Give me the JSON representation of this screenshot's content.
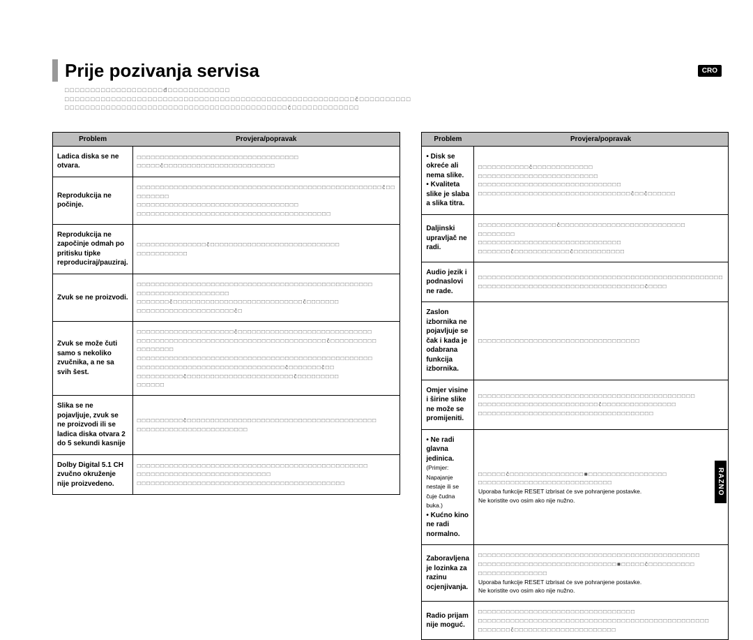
{
  "header": {
    "title": "Prije pozivanja servisa",
    "lang_badge": "CRO",
    "intro_line1": "□□□□□□□□□□□□□□□□□□□đ□□□□□□□□□□□□",
    "intro_line2": "□□□□□□□□□□□□□□□□□□□□□□□□□□□□□□□□□□□□□□□□□□□□□□□□□□□□□□□□č□□□□□□□□□□",
    "intro_line3": "□□□□□□□□□□□□□□□□□□□□□□□□□□□□□□□□□□□□□□□□□□□č□□□□□□□□□□□□□"
  },
  "table_header": {
    "col1": "Problem",
    "col2": "Provjera/popravak"
  },
  "left_rows": [
    {
      "problem": "Ladica diska se ne otvara.",
      "fix": "□□□□□□□□□□□□□□□□□□□□□□□□□□□□□□□□□□□\n□□□□□č□□□□□□□□□□□□□□□□□□□□□□□□"
    },
    {
      "problem": "Reprodukcija ne počinje.",
      "fix": "□□□□□□□□□□□□□□□□□□□□□□□□□□□□□□□□□□□□□□□□□□□□□□□□□□□□□č□□\n□□□□□□□\n□□□□□□□□□□□□□□□□□□□□□□□□□□□□□□□□□□□\n□□□□□□□□□□□□□□□□□□□□□□□□□□□□□□□□□□□□□□□□□□"
    },
    {
      "problem": "Reprodukcija ne započinje odmah po pritisku tipke reproduciraj/pauziraj.",
      "fix": "□□□□□□□□□□□□□□□č□□□□□□□□□□□□□□□□□□□□□□□□□□□□\n□□□□□□□□□□□"
    },
    {
      "problem": "Zvuk se ne proizvodi.",
      "fix": "□□□□□□□□□□□□□□□□□□□□□□□□□□□□□□□□□□□□□□□□□□□□□□□□□□□\n□□□□□□□□□□□□□□□□□□□□\n□□□□□□□č□□□□□□□□□□□□□□□□□□□□□□□□□□□□č□□□□□□□\n□□□□□□□□□□□□□□□□□□□□□č□"
    },
    {
      "problem": "Zvuk se može čuti samo s nekoliko zvučnika, a ne sa svih šest.",
      "fix": "□□□□□□□□□□□□□□□□□□□□□č□□□□□□□□□□□□□□□□□□□□□□□□□□□□□\n□□□□□□□□□□□□□□□□□□□□□□□□□□□□□□□□□□□□□□□□□č□□□□□□□□□□\n□□□□□□□□\n□□□□□□□□□□□□□□□□□□□□□□□□□□□□□□□□□□□□□□□□□□□□□□□□□□□\n□□□□□□□□□□□□□□□□□□□□□□□□□□□□□□□□č□□□□□□□č□□\n□□□□□□□□□□č□□□□□□□□□□□□□□□□□□□□□□□č□□□□□□□□□\n□□□□□□"
    },
    {
      "problem": "Slika se ne pojavljuje, zvuk se ne proizvodi ili se ladica diska otvara 2 do 5 sekundi kasnije",
      "fix": "□□□□□□□□□□č□□□□□□□□□□□□□□□□□□□□□□□□□□□□□□□□□□□□□□□□□\n□□□□□□□□□□□□□□□□□□□□□□□□"
    },
    {
      "problem": "Dolby Digital 5.1 CH zvučno okruženje nije proizvedeno.",
      "fix": "□□□□□□□□□□□□□□□□□□□□□□□□□□□□□□□□□□□□□□□□□□□□□□□□□□\n□□□□□□□□□□□□□□□□□□□□□□□□□□□□□\n□□□□□□□□□□□□□□□□□□□□□□□□□□□□□□□□□□□□□□□□□□□□□"
    }
  ],
  "right_rows": [
    {
      "problem": "• Disk se okreće ali nema slike.\n• Kvaliteta slike je slaba a slika titra.",
      "fix": "□□□□□□□□□□□č□□□□□□□□□□□□□\n□□□□□□□□□□□□□□□□□□□□□□□□□□\n□□□□□□□□□□□□□□□□□□□□□□□□□□□□□□□\n□□□□□□□□□□□□□□□□□□□□□□□□□□□□□□□□□č□□č□□□□□□"
    },
    {
      "problem": "Daljinski upravljač ne radi.",
      "fix": "□□□□□□□□□□□□□□□□□č□□□□□□□□□□□□□□□□□□□□□□□□□□□\n□□□□□□□□\n□□□□□□□□□□□□□□□□□□□□□□□□□□□□□□□\n□□□□□□□č□□□□□□□□□□□□č□□□□□□□□□□□"
    },
    {
      "problem": "Audio jezik i podnaslovi ne rade.",
      "fix": "□□□□□□□□□□□□□□□□□□□□□□□□□□□□□□□□□□□□□□□□□□□□□□□□□□□□□\n□□□□□□□□□□□□□□□□□□□□□□□□□□□□□□□□□□□□č□□□□"
    },
    {
      "problem": "Zaslon izbornika ne pojavljuje se čak i kada je odabrana funkcija izbornika.",
      "fix": "□□□□□□□□□□□□□□□□□□□□□□□□□□□□□□□□□□□"
    },
    {
      "problem": "Omjer visine i širine slike ne može se promijeniti.",
      "fix": "□□□□□□□□□□□□□□□□□□□□□□□□□□□□□□□□□□□□□□□□□□□□□□□\n□□□□□□□□□□□□□□□□□□□□□□□□□□č□□□□□□□□□□□□□□□□\n□□□□□□□□□□□□□□□□□□□□□□□□□□□□□□□□□□□□□□"
    },
    {
      "problem": "• Ne radi glavna jedinica.\n  (Primjer: Napajanje nestaje ili se čuje čudna buka.)\n• Kućno kino ne radi normalno.",
      "subnote": true,
      "fix": "□□□□□□č□□□□□□□□□□□□□□□□■□□□□□□□□□□□□□□□□□\n□□□□□□□□□□□□□□□□□□□□□□□□□□□□□\nUporaba funkcije RESET izbrisat će sve pohranjene postavke.\nNe koristite ovo osim ako nije nužno."
    },
    {
      "problem": "Zaboravljena je lozinka za razinu ocjenjivanja.",
      "fix": "□□□□□□□□□□□□□□□□□□□□□□□□□□□□□□□□□□□□□□□□□□□□□□□□\n□□□□□□□□□□□□□□□□□□□□□□□□□□□□□□■□□□□□č□□□□□□□□□□\n□□□□□□□□□□□□□□□\nUporaba funkcije RESET izbrisat će sve pohranjene postavke.\nNe koristite ovo osim ako nije nužno."
    },
    {
      "problem": "Radio prijam nije moguć.",
      "fix": "□□□□□□□□□□□□□□□□□□□□□□□□□□□□□□□□□□\n□□□□□□□□□□□□□□□□□□□□□□□□□□□□□□□□□□□□□□□□□□□□□□□□□□\n□□□□□□□č□□□□□□□□□□□□□□□□□□□□□□"
    }
  ],
  "side_tab": "RAZNO",
  "colors": {
    "header_bg": "#bfbfbf",
    "accent": "#999999",
    "badge_bg": "#000000",
    "badge_fg": "#ffffff"
  }
}
